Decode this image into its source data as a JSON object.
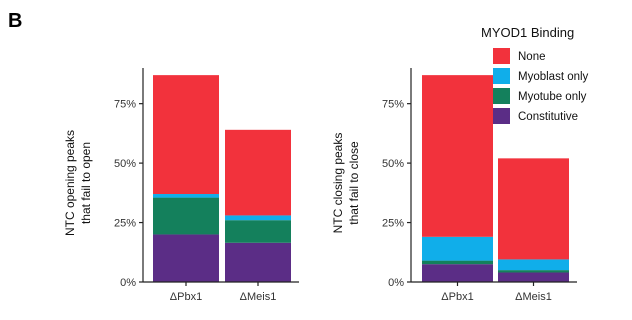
{
  "panel_label": "B",
  "legend": {
    "title": "MYOD1 Binding",
    "items": [
      {
        "label": "None",
        "color": "#F2323C"
      },
      {
        "label": "Myoblast only",
        "color": "#10AEEA"
      },
      {
        "label": "Myotube only",
        "color": "#14805C"
      },
      {
        "label": "Constitutive",
        "color": "#5B2D86"
      }
    ]
  },
  "chart_data": [
    {
      "type": "bar",
      "stacked": true,
      "categories": [
        "ΔPbx1",
        "ΔMeis1"
      ],
      "ylabel": [
        "NTC opening peaks",
        "that fail to open"
      ],
      "ylim": [
        0,
        90
      ],
      "yticks": [
        0,
        25,
        50,
        75
      ],
      "ytick_labels": [
        "0%",
        "25%",
        "50%",
        "75%"
      ],
      "series": [
        {
          "name": "Constitutive",
          "color": "#5B2D86",
          "values": [
            20,
            16.5
          ]
        },
        {
          "name": "Myotube only",
          "color": "#14805C",
          "values": [
            15.5,
            9.5
          ]
        },
        {
          "name": "Myoblast only",
          "color": "#10AEEA",
          "values": [
            1.5,
            2
          ]
        },
        {
          "name": "None",
          "color": "#F2323C",
          "values": [
            50,
            36
          ]
        }
      ]
    },
    {
      "type": "bar",
      "stacked": true,
      "categories": [
        "ΔPbx1",
        "ΔMeis1"
      ],
      "ylabel": [
        "NTC closing peaks",
        "that fail to close"
      ],
      "ylim": [
        0,
        90
      ],
      "yticks": [
        0,
        25,
        50,
        75
      ],
      "ytick_labels": [
        "0%",
        "25%",
        "50%",
        "75%"
      ],
      "series": [
        {
          "name": "Constitutive",
          "color": "#5B2D86",
          "values": [
            7.5,
            4
          ]
        },
        {
          "name": "Myotube only",
          "color": "#14805C",
          "values": [
            1.5,
            1
          ]
        },
        {
          "name": "Myoblast only",
          "color": "#10AEEA",
          "values": [
            10,
            4.5
          ]
        },
        {
          "name": "None",
          "color": "#F2323C",
          "values": [
            68,
            42.5
          ]
        }
      ]
    }
  ]
}
